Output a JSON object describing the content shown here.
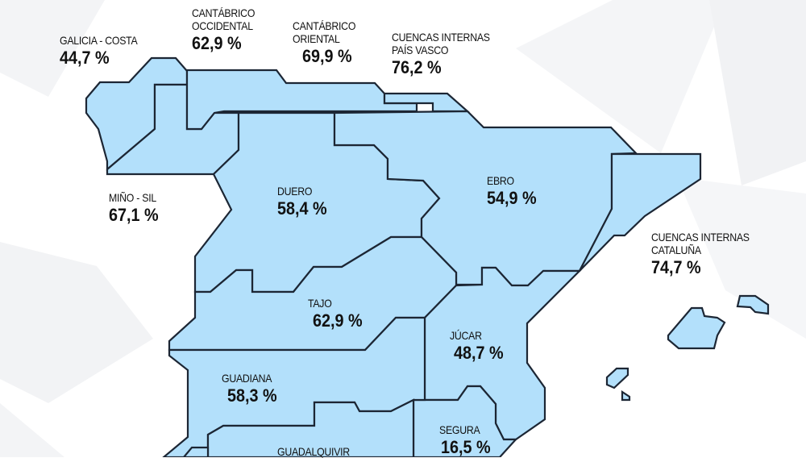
{
  "colors": {
    "region_fill": "#b3e0fb",
    "border": "#1c2634",
    "text": "#111111",
    "background": "#ffffff"
  },
  "basins": [
    {
      "id": "galicia-costa",
      "name_lines": [
        "GALICIA - COSTA"
      ],
      "value": "44,7 %"
    },
    {
      "id": "cantabrico-occidental",
      "name_lines": [
        "CANTÁBRICO",
        "OCCIDENTAL"
      ],
      "value": "62,9 %"
    },
    {
      "id": "cantabrico-oriental",
      "name_lines": [
        "CANTÁBRICO",
        "ORIENTAL"
      ],
      "value": "69,9 %"
    },
    {
      "id": "cuencas-internas-pais-vasco",
      "name_lines": [
        "CUENCAS INTERNAS",
        "PAÍS VASCO"
      ],
      "value": "76,2 %"
    },
    {
      "id": "mino-sil",
      "name_lines": [
        "MIÑO - SIL"
      ],
      "value": "67,1 %"
    },
    {
      "id": "duero",
      "name_lines": [
        "DUERO"
      ],
      "value": "58,4 %"
    },
    {
      "id": "ebro",
      "name_lines": [
        "EBRO"
      ],
      "value": "54,9 %"
    },
    {
      "id": "cuencas-internas-cataluna",
      "name_lines": [
        "CUENCAS INTERNAS",
        "CATALUÑA"
      ],
      "value": "74,7 %"
    },
    {
      "id": "tajo",
      "name_lines": [
        "TAJO"
      ],
      "value": "62,9 %"
    },
    {
      "id": "jucar",
      "name_lines": [
        "JÚCAR"
      ],
      "value": "48,7 %"
    },
    {
      "id": "guadiana",
      "name_lines": [
        "GUADIANA"
      ],
      "value": "58,3 %"
    },
    {
      "id": "segura",
      "name_lines": [
        "SEGURA"
      ],
      "value": "16,5 %"
    },
    {
      "id": "guadalquivir",
      "name_lines": [
        "GUADALQUIVIR"
      ],
      "value": ""
    }
  ]
}
